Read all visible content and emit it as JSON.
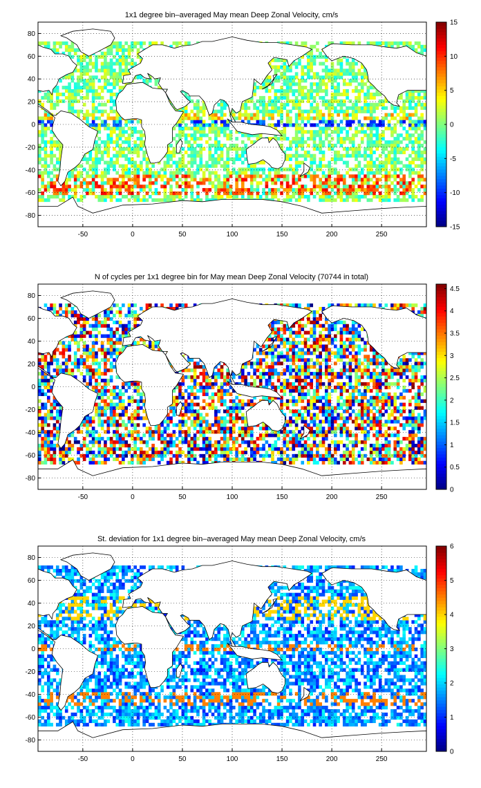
{
  "chart_data": [
    {
      "type": "heatmap",
      "title": "1x1 degree bin–averaged May mean Deep Zonal Velocity, cm/s",
      "xlim": [
        -95,
        295
      ],
      "ylim": [
        -90,
        90
      ],
      "xticks": [
        -50,
        0,
        50,
        100,
        150,
        200,
        250
      ],
      "yticks": [
        -80,
        -60,
        -40,
        -20,
        0,
        20,
        40,
        60,
        80
      ],
      "grid": "dotted",
      "colormap": "jet",
      "colorbar_range": [
        -15,
        15
      ],
      "colorbar_ticks": [
        -15,
        -10,
        -5,
        0,
        5,
        10,
        15
      ],
      "bands": [
        {
          "lat_min": -62,
          "lat_max": -45,
          "value": 9
        },
        {
          "lat_min": -2,
          "lat_max": 2,
          "value": -9
        },
        {
          "lat_min": 4,
          "lat_max": 7,
          "value": 5
        }
      ]
    },
    {
      "type": "heatmap",
      "title": "N of cycles per 1x1 degree bin for May mean Deep Zonal Velocity (70744 in total)",
      "xlim": [
        -95,
        295
      ],
      "ylim": [
        -90,
        90
      ],
      "xticks": [
        -50,
        0,
        50,
        100,
        150,
        200,
        250
      ],
      "yticks": [
        -80,
        -60,
        -40,
        -20,
        0,
        20,
        40,
        60,
        80
      ],
      "grid": "dotted",
      "colormap": "jet",
      "colorbar_range": [
        0,
        4.6
      ],
      "colorbar_ticks": [
        0,
        0.5,
        1,
        1.5,
        2,
        2.5,
        3,
        3.5,
        4,
        4.5
      ],
      "total_cycles": 70744
    },
    {
      "type": "heatmap",
      "title": "St. deviation for 1x1 degree bin–averaged May mean Deep Zonal Velocity, cm/s",
      "xlim": [
        -95,
        295
      ],
      "ylim": [
        -90,
        90
      ],
      "xticks": [
        -50,
        0,
        50,
        100,
        150,
        200,
        250
      ],
      "yticks": [
        -80,
        -60,
        -40,
        -20,
        0,
        20,
        40,
        60,
        80
      ],
      "grid": "dotted",
      "colormap": "jet",
      "colorbar_range": [
        0,
        6
      ],
      "colorbar_ticks": [
        0,
        1,
        2,
        3,
        4,
        5,
        6
      ],
      "bands": [
        {
          "lat_min": -50,
          "lat_max": -40,
          "value": 4.5
        },
        {
          "lat_min": -2,
          "lat_max": 2,
          "value": 4.5
        },
        {
          "lat_min": 25,
          "lat_max": 45,
          "value": 4
        }
      ]
    }
  ]
}
